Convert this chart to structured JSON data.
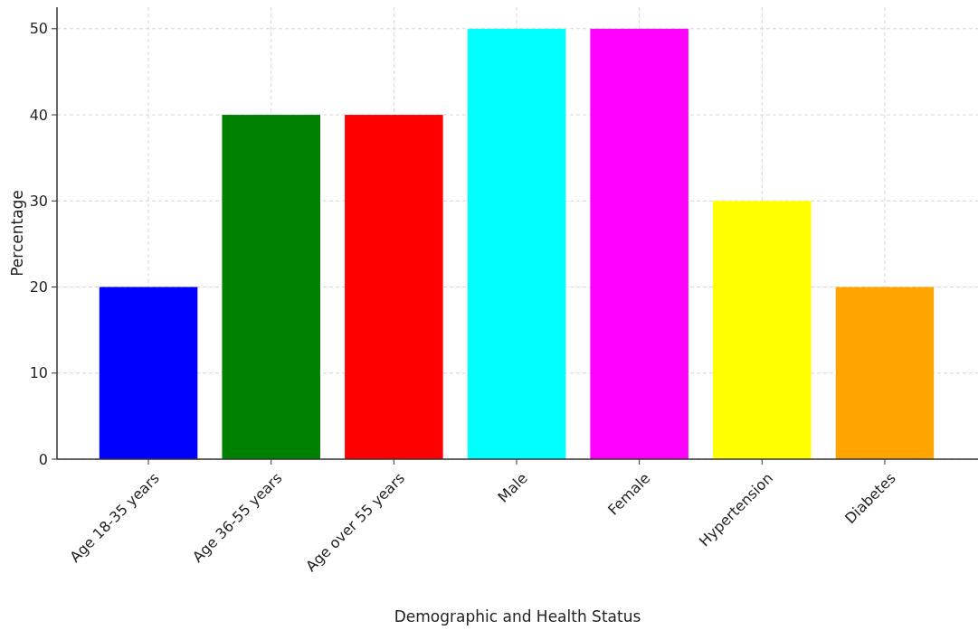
{
  "chart_data": {
    "type": "bar",
    "xlabel": "Demographic and Health Status",
    "ylabel": "Percentage",
    "categories": [
      "Age 18-35 years",
      "Age 36-55 years",
      "Age over 55 years",
      "Male",
      "Female",
      "Hypertension",
      "Diabetes"
    ],
    "values": [
      20,
      40,
      40,
      50,
      50,
      30,
      20
    ],
    "colors": [
      "#0000ff",
      "#008000",
      "#ff0000",
      "#00ffff",
      "#ff00ff",
      "#ffff00",
      "#ffa500"
    ],
    "ylim": [
      0,
      52.5
    ],
    "yticks": [
      0,
      10,
      20,
      30,
      40,
      50
    ],
    "grid": true
  }
}
